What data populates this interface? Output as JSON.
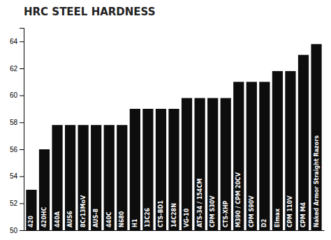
{
  "chart_data": {
    "type": "bar",
    "title": "HRC STEEL HARDNESS",
    "categories": [
      "420",
      "420HC",
      "440A",
      "AUS6",
      "8Cr13MoV",
      "AUS-8",
      "440C",
      "N680",
      "H1",
      "13C26",
      "CTS-BD1",
      "14C28N",
      "VG-10",
      "ATS-34 / 154CM",
      "CPM S30V",
      "CTS-XHP",
      "M390 / CPM 20CV",
      "CPM S90V",
      "D2",
      "Elmax",
      "CPM 110V",
      "CPM M4",
      "Naked Armor Straight Razors"
    ],
    "values": [
      53.0,
      56.0,
      57.8,
      57.8,
      57.8,
      57.8,
      57.8,
      57.8,
      59.0,
      59.0,
      59.0,
      59.0,
      59.8,
      59.8,
      59.8,
      59.8,
      61.0,
      61.0,
      61.0,
      61.8,
      61.8,
      63.0,
      63.8
    ],
    "color": "#0d0d0d",
    "ylim": [
      50,
      65
    ],
    "yticks": [
      50,
      52,
      54,
      56,
      58,
      60,
      62,
      64
    ],
    "grid": false
  }
}
